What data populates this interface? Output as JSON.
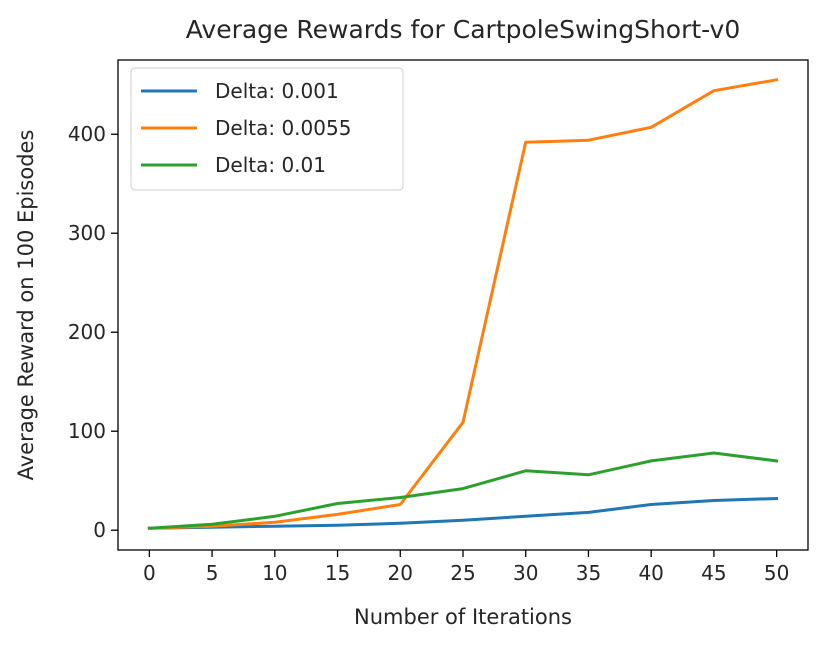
{
  "chart_data": {
    "type": "line",
    "title": "Average Rewards for CartpoleSwingShort-v0",
    "xlabel": "Number of Iterations",
    "ylabel": "Average Reward on 100 Episodes",
    "x": [
      0,
      5,
      10,
      15,
      20,
      25,
      30,
      35,
      40,
      45,
      50
    ],
    "xlim": [
      -2.5,
      52.5
    ],
    "ylim": [
      -20,
      475
    ],
    "xticks": [
      "0",
      "5",
      "10",
      "15",
      "20",
      "25",
      "30",
      "35",
      "40",
      "45",
      "50"
    ],
    "yticks": [
      "0",
      "100",
      "200",
      "300",
      "400"
    ],
    "grid": false,
    "legend_position": "top-left",
    "series": [
      {
        "name": "Delta: 0.001",
        "color": "#1f77b4",
        "values": [
          2,
          3,
          4,
          5,
          7,
          10,
          14,
          18,
          26,
          30,
          32
        ]
      },
      {
        "name": "Delta: 0.0055",
        "color": "#ff7f0e",
        "values": [
          2,
          4,
          8,
          16,
          26,
          109,
          392,
          394,
          407,
          444,
          455
        ]
      },
      {
        "name": "Delta: 0.01",
        "color": "#2ca02c",
        "values": [
          2,
          6,
          14,
          27,
          33,
          42,
          60,
          56,
          70,
          78,
          70
        ]
      }
    ]
  }
}
